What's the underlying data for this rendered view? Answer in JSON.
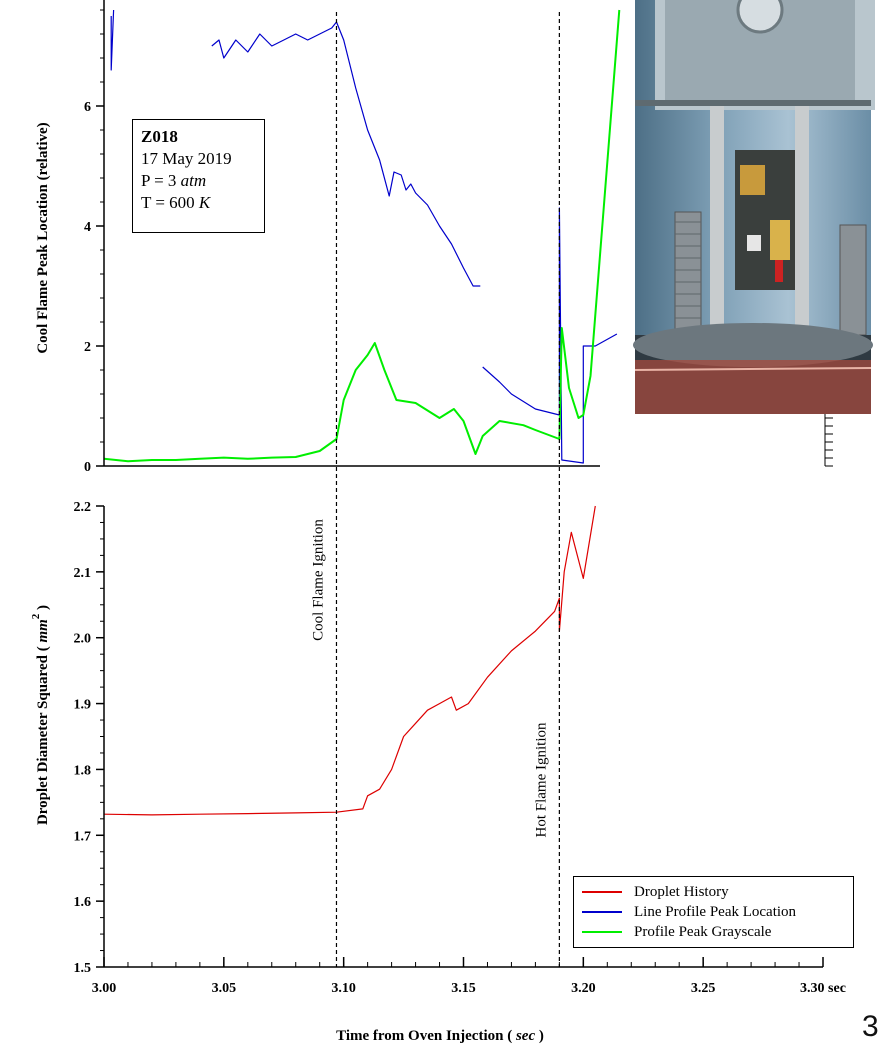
{
  "info_box": {
    "id": "Z018",
    "date": "17 May 2019",
    "pressure_prefix": "P = 3 ",
    "pressure_unit": "atm",
    "temperature_prefix": "T = 600 ",
    "temperature_unit": "K"
  },
  "page_number": "3",
  "chart_data": [
    {
      "type": "line",
      "panel": "top",
      "ylabel": "Cool Flame Peak Location (relative)",
      "ylim": [
        0,
        7.6
      ],
      "yticks": [
        0,
        2,
        4,
        6
      ],
      "ytick_labels": [
        "0",
        "2",
        "4",
        "6"
      ],
      "xlim": [
        3.0,
        3.3
      ],
      "series": [
        {
          "name": "Line Profile Peak Location",
          "color": "#0000cc",
          "segments": [
            [
              [
                3.003,
                7.5
              ],
              [
                3.003,
                6.6
              ],
              [
                3.004,
                7.6
              ]
            ],
            [
              [
                3.045,
                7.0
              ],
              [
                3.048,
                7.1
              ],
              [
                3.05,
                6.8
              ],
              [
                3.055,
                7.1
              ],
              [
                3.06,
                6.9
              ],
              [
                3.065,
                7.2
              ],
              [
                3.07,
                7.0
              ],
              [
                3.075,
                7.1
              ],
              [
                3.08,
                7.2
              ],
              [
                3.085,
                7.1
              ],
              [
                3.09,
                7.2
              ],
              [
                3.095,
                7.3
              ],
              [
                3.097,
                7.4
              ],
              [
                3.1,
                7.1
              ],
              [
                3.105,
                6.3
              ],
              [
                3.11,
                5.6
              ],
              [
                3.115,
                5.1
              ],
              [
                3.119,
                4.5
              ],
              [
                3.121,
                4.9
              ],
              [
                3.124,
                4.85
              ],
              [
                3.126,
                4.6
              ],
              [
                3.128,
                4.7
              ],
              [
                3.13,
                4.55
              ],
              [
                3.135,
                4.35
              ],
              [
                3.14,
                4.0
              ],
              [
                3.145,
                3.7
              ],
              [
                3.15,
                3.3
              ],
              [
                3.154,
                3.0
              ],
              [
                3.157,
                3.0
              ]
            ],
            [
              [
                3.158,
                1.65
              ],
              [
                3.165,
                1.4
              ],
              [
                3.17,
                1.2
              ],
              [
                3.18,
                0.95
              ],
              [
                3.185,
                0.9
              ],
              [
                3.19,
                0.85
              ],
              [
                3.19,
                4.3
              ],
              [
                3.191,
                0.1
              ],
              [
                3.2,
                0.05
              ],
              [
                3.2,
                2.0
              ],
              [
                3.205,
                2.0
              ],
              [
                3.214,
                2.2
              ]
            ]
          ]
        },
        {
          "name": "Profile Peak Grayscale",
          "color": "#00ee00",
          "segments": [
            [
              [
                3.0,
                0.12
              ],
              [
                3.01,
                0.08
              ],
              [
                3.02,
                0.1
              ],
              [
                3.03,
                0.1
              ],
              [
                3.04,
                0.12
              ],
              [
                3.05,
                0.14
              ],
              [
                3.06,
                0.12
              ],
              [
                3.07,
                0.14
              ],
              [
                3.08,
                0.15
              ],
              [
                3.09,
                0.25
              ],
              [
                3.097,
                0.45
              ],
              [
                3.1,
                1.1
              ],
              [
                3.105,
                1.6
              ],
              [
                3.11,
                1.85
              ],
              [
                3.113,
                2.05
              ],
              [
                3.117,
                1.6
              ],
              [
                3.122,
                1.1
              ],
              [
                3.13,
                1.05
              ],
              [
                3.14,
                0.8
              ],
              [
                3.146,
                0.95
              ],
              [
                3.15,
                0.75
              ],
              [
                3.155,
                0.2
              ],
              [
                3.158,
                0.5
              ],
              [
                3.165,
                0.75
              ],
              [
                3.175,
                0.68
              ],
              [
                3.18,
                0.6
              ],
              [
                3.19,
                0.45
              ],
              [
                3.191,
                2.3
              ],
              [
                3.194,
                1.3
              ],
              [
                3.198,
                0.8
              ],
              [
                3.2,
                0.85
              ],
              [
                3.203,
                1.5
              ],
              [
                3.215,
                7.6
              ]
            ]
          ]
        }
      ]
    },
    {
      "type": "line",
      "panel": "bottom",
      "xlabel": "Time from Oven Injection",
      "xlabel_unit": "sec",
      "ylabel": "Droplet Diameter Squared",
      "ylabel_unit": "mm",
      "ylim": [
        1.5,
        2.2
      ],
      "yticks": [
        1.5,
        1.6,
        1.7,
        1.8,
        1.9,
        2.0,
        2.1,
        2.2
      ],
      "ytick_labels": [
        "1.5",
        "1.6",
        "1.7",
        "1.8",
        "1.9",
        "2.0",
        "2.1",
        "2.2"
      ],
      "xlim": [
        3.0,
        3.3
      ],
      "xticks": [
        3.0,
        3.05,
        3.1,
        3.15,
        3.2,
        3.25,
        3.3
      ],
      "xtick_labels": [
        "3.00",
        "3.05",
        "3.10",
        "3.15",
        "3.20",
        "3.25",
        "3.30 sec"
      ],
      "vlines": [
        {
          "x": 3.097,
          "label": "Cool Flame Ignition"
        },
        {
          "x": 3.19,
          "label": "Hot Flame Ignition"
        }
      ],
      "series": [
        {
          "name": "Droplet History",
          "color": "#dd0000",
          "segments": [
            [
              [
                3.0,
                1.732
              ],
              [
                3.02,
                1.731
              ],
              [
                3.04,
                1.732
              ],
              [
                3.06,
                1.733
              ],
              [
                3.08,
                1.734
              ],
              [
                3.097,
                1.735
              ],
              [
                3.108,
                1.74
              ],
              [
                3.11,
                1.76
              ],
              [
                3.115,
                1.77
              ],
              [
                3.12,
                1.8
              ],
              [
                3.125,
                1.85
              ],
              [
                3.13,
                1.87
              ],
              [
                3.135,
                1.89
              ],
              [
                3.14,
                1.9
              ],
              [
                3.145,
                1.91
              ],
              [
                3.147,
                1.89
              ],
              [
                3.152,
                1.9
              ],
              [
                3.16,
                1.94
              ],
              [
                3.17,
                1.98
              ],
              [
                3.18,
                2.01
              ],
              [
                3.188,
                2.04
              ],
              [
                3.19,
                2.06
              ],
              [
                3.19,
                2.01
              ],
              [
                3.192,
                2.1
              ],
              [
                3.195,
                2.16
              ],
              [
                3.2,
                2.09
              ],
              [
                3.205,
                2.2
              ]
            ]
          ]
        }
      ]
    }
  ]
}
